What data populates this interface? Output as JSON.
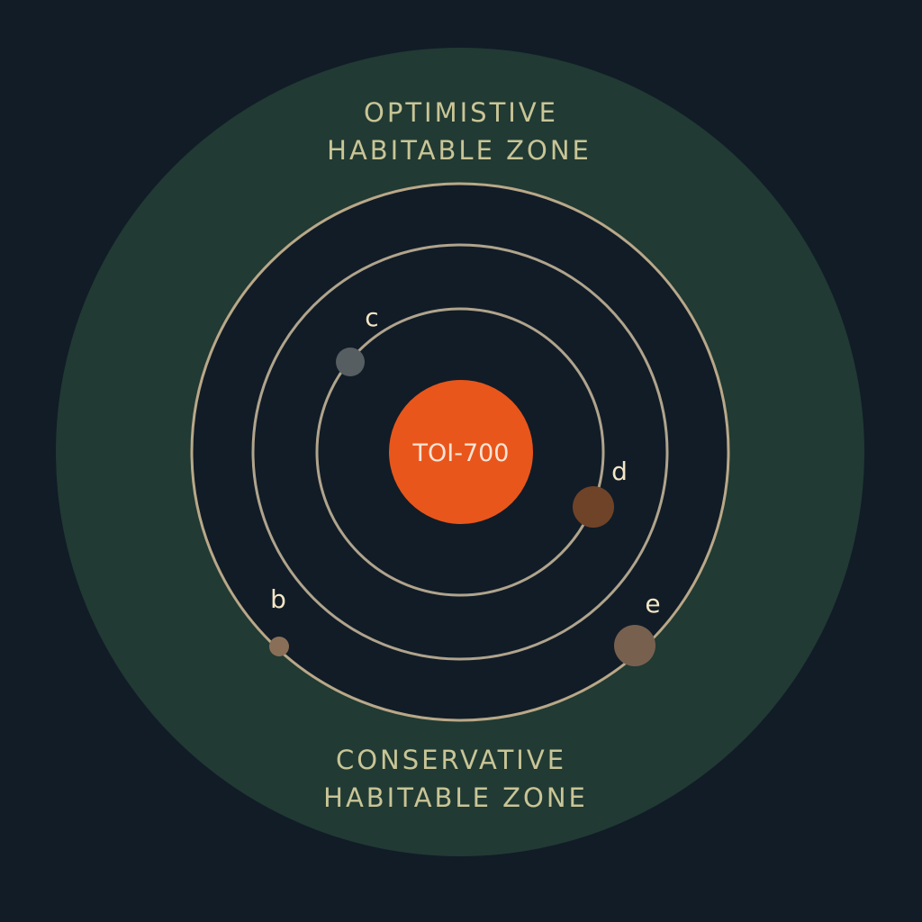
{
  "star": {
    "name": "TOI-700",
    "color": "#e9561b"
  },
  "zones": {
    "optimistic": {
      "line1": "OPTIMISTIVE",
      "line2": "HABITABLE  ZONE",
      "color": "#213a33"
    },
    "conservative": {
      "line1": "CONSERVATIVE",
      "line2": "HABITABLE  ZONE"
    }
  },
  "planets": [
    {
      "label": "c",
      "color": "#575e62"
    },
    {
      "label": "d",
      "color": "#6f4328"
    },
    {
      "label": "b",
      "color": "#8a6f58"
    },
    {
      "label": "e",
      "color": "#78604f"
    }
  ],
  "colors": {
    "background": "#111c27",
    "orbit": "#b9a888",
    "text": "#c9c596"
  }
}
